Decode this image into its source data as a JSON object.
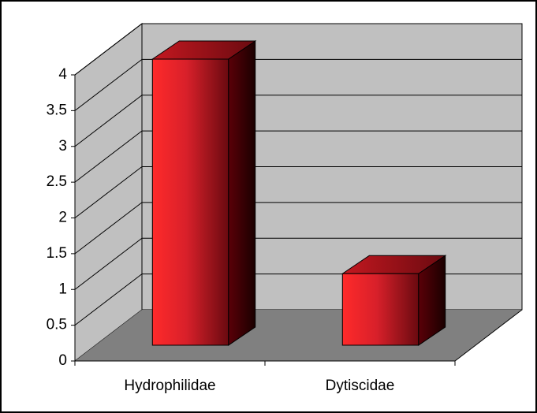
{
  "chart_data": {
    "type": "bar3d",
    "categories": [
      "Hydrophilidae",
      "Dytiscidae"
    ],
    "values": [
      4,
      1
    ],
    "color": "#e8202a",
    "ylim": [
      0,
      4
    ],
    "yticks": [
      0,
      0.5,
      1,
      1.5,
      2,
      2.5,
      3,
      3.5,
      4
    ],
    "grid": true
  }
}
